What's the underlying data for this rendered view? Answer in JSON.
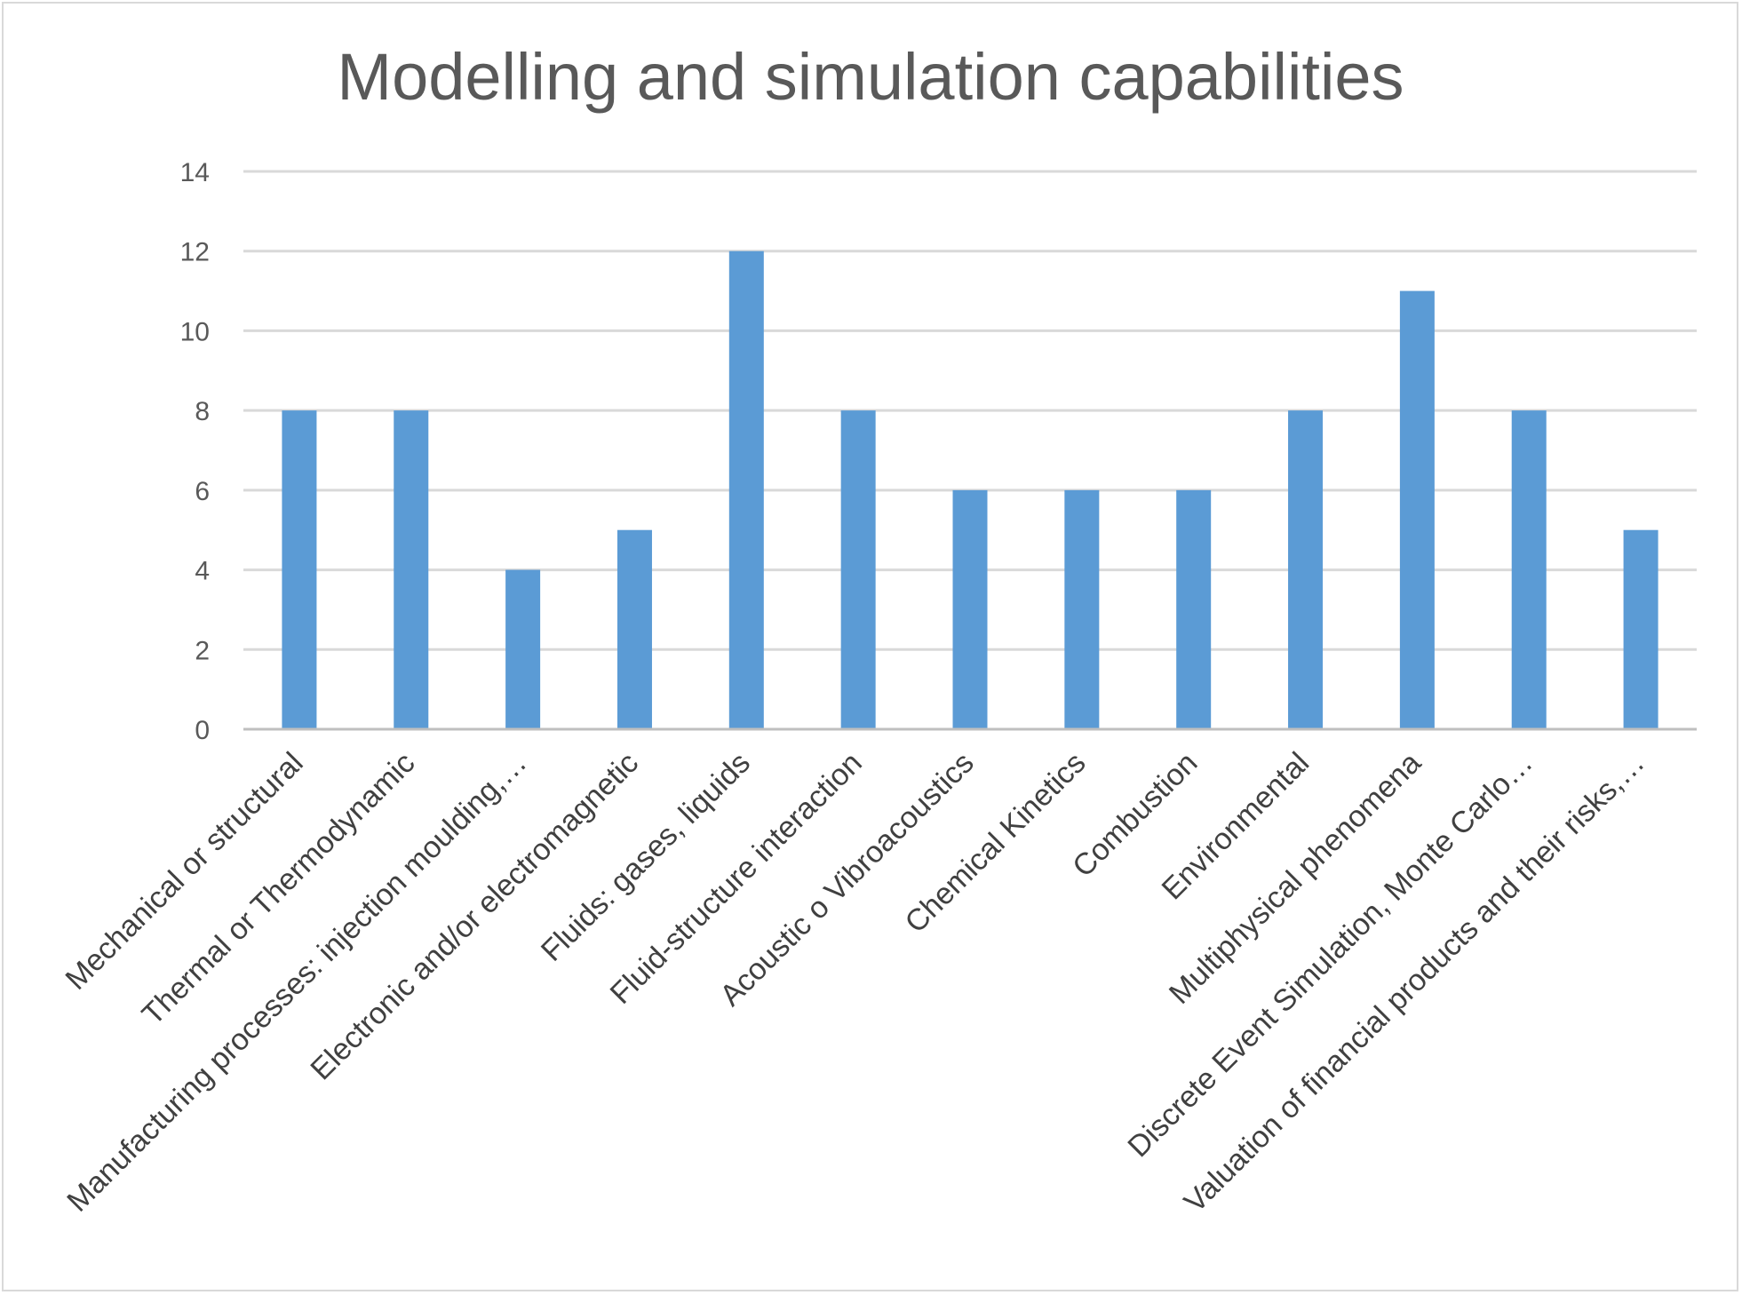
{
  "chart_data": {
    "type": "bar",
    "title": "Modelling and simulation capabilities",
    "xlabel": "",
    "ylabel": "",
    "ylim": [
      0,
      14
    ],
    "yticks": [
      0,
      2,
      4,
      6,
      8,
      10,
      12,
      14
    ],
    "grid": true,
    "legend": "none",
    "bar_color": "#5b9bd5",
    "categories": [
      "Mechanical or structural",
      "Thermal or Thermodynamic",
      "Manufacturing processes: injection moulding,…",
      "Electronic and/or electromagnetic",
      "Fluids: gases, liquids",
      "Fluid-structure interaction",
      "Acoustic o Vibroacoustics",
      "Chemical Kinetics",
      "Combustion",
      "Environmental",
      "Multiphysical phenomena",
      "Discrete Event Simulation, Monte Carlo…",
      "Valuation of financial products and their risks,…"
    ],
    "values": [
      8,
      8,
      4,
      5,
      12,
      8,
      6,
      6,
      6,
      8,
      11,
      8,
      5
    ]
  }
}
